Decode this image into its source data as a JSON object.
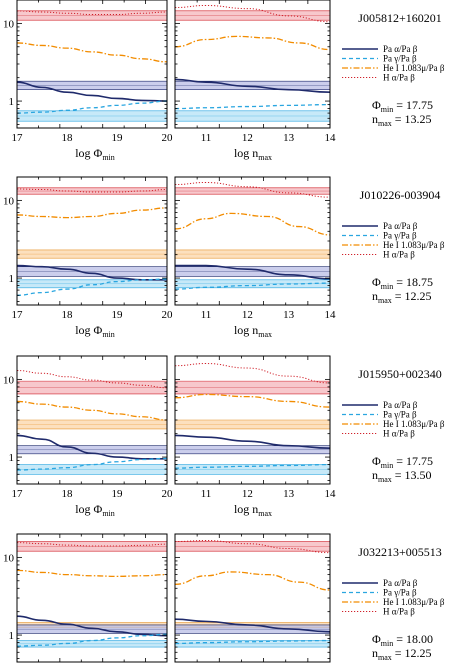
{
  "legend_labels": [
    "Pa α/Pa β",
    "Pa γ/Pa β",
    "He I 1.083μ/Pa β",
    "H α/Pa β"
  ],
  "axis_labels": {
    "left_x": "log Φ",
    "left_x_sub": "min",
    "right_x": "log n",
    "right_x_sub": "max"
  },
  "colors": {
    "paa": "#1f2a6b",
    "pag": "#2aa6e0",
    "hei": "#f28c00",
    "ha": "#d0202a"
  },
  "chart_data": [
    {
      "type": "line",
      "object": "J005812+160201",
      "phi_min": "Φ",
      "phi_min_sub": "min",
      "phi_min_value": "= 17.75",
      "n_max": "n",
      "n_max_sub": "max",
      "n_max_value": "= 13.25",
      "axes_visible_bottom": true,
      "left": {
        "xlim": [
          17,
          20
        ],
        "xticks": [
          "17",
          "18",
          "19",
          "20"
        ],
        "ylog": true,
        "yticks": [
          "1",
          "10"
        ],
        "series": [
          {
            "key": "paa",
            "x": [
              17,
              17.5,
              18,
              18.5,
              19,
              19.5,
              20
            ],
            "y": [
              1.75,
              1.5,
              1.3,
              1.18,
              1.08,
              1.02,
              1.0
            ]
          },
          {
            "key": "pag",
            "x": [
              17,
              17.5,
              18,
              18.5,
              19,
              19.5,
              20
            ],
            "y": [
              0.7,
              0.72,
              0.76,
              0.82,
              0.88,
              0.94,
              1.0
            ]
          },
          {
            "key": "hei",
            "x": [
              17,
              17.5,
              18,
              18.5,
              19,
              19.5,
              20
            ],
            "y": [
              5.6,
              5.2,
              4.8,
              4.3,
              3.9,
              3.5,
              3.2
            ]
          },
          {
            "key": "ha",
            "x": [
              17,
              17.5,
              18,
              18.5,
              19,
              19.5,
              20
            ],
            "y": [
              14.5,
              14.0,
              13.5,
              13.0,
              13.0,
              13.5,
              14.0
            ]
          }
        ]
      },
      "right": {
        "xlim": [
          10.25,
          14
        ],
        "xticks": [
          "11",
          "12",
          "13",
          "14"
        ],
        "ylog": true,
        "yticks": [
          "1",
          "10"
        ],
        "series": [
          {
            "key": "paa",
            "x": [
              10.25,
              11,
              12,
              13,
              14
            ],
            "y": [
              1.9,
              1.75,
              1.55,
              1.4,
              1.3
            ]
          },
          {
            "key": "pag",
            "x": [
              10.25,
              11,
              12,
              13,
              14
            ],
            "y": [
              0.8,
              0.82,
              0.85,
              0.88,
              0.9
            ]
          },
          {
            "key": "hei",
            "x": [
              10.25,
              11,
              11.75,
              12.5,
              13.25,
              14
            ],
            "y": [
              5.0,
              6.2,
              6.8,
              6.5,
              5.6,
              4.6
            ]
          },
          {
            "key": "ha",
            "x": [
              10.25,
              11,
              12,
              13,
              14
            ],
            "y": [
              16,
              17,
              15.5,
              12.5,
              10.5
            ]
          }
        ]
      },
      "bands": {
        "ha": [
          11,
          14.5
        ],
        "paa": [
          1.4,
          1.8
        ],
        "pag": [
          0.55,
          0.75
        ]
      }
    },
    {
      "type": "line",
      "object": "J010226-003904",
      "phi_min": "Φ",
      "phi_min_sub": "min",
      "phi_min_value": "= 18.75",
      "n_max": "n",
      "n_max_sub": "max",
      "n_max_value": "= 12.25",
      "axes_visible_bottom": true,
      "left": {
        "xlim": [
          17,
          20
        ],
        "xticks": [
          "17",
          "18",
          "19",
          "20"
        ],
        "ylog": true,
        "yticks": [
          "1",
          "10"
        ],
        "series": [
          {
            "key": "paa",
            "x": [
              17,
              17.5,
              18,
              18.5,
              19,
              19.5,
              20
            ],
            "y": [
              1.45,
              1.4,
              1.3,
              1.15,
              1.0,
              0.95,
              0.95
            ]
          },
          {
            "key": "pag",
            "x": [
              17,
              17.5,
              18,
              18.5,
              19,
              19.5,
              20
            ],
            "y": [
              0.6,
              0.65,
              0.72,
              0.82,
              0.9,
              0.95,
              0.97
            ]
          },
          {
            "key": "hei",
            "x": [
              17,
              17.5,
              18,
              18.5,
              19,
              19.5,
              20
            ],
            "y": [
              6.5,
              6.2,
              6.0,
              6.2,
              6.8,
              7.5,
              8.0
            ]
          },
          {
            "key": "ha",
            "x": [
              17,
              17.5,
              18,
              18.5,
              19,
              19.5,
              20
            ],
            "y": [
              14.0,
              13.8,
              13.2,
              12.8,
              12.8,
              13.2,
              13.8
            ]
          }
        ]
      },
      "right": {
        "xlim": [
          10.25,
          14
        ],
        "xticks": [
          "11",
          "12",
          "13",
          "14"
        ],
        "ylog": true,
        "yticks": [
          "1",
          "10"
        ],
        "series": [
          {
            "key": "paa",
            "x": [
              10.25,
              11,
              12,
              13,
              14
            ],
            "y": [
              1.45,
              1.45,
              1.3,
              1.1,
              0.98
            ]
          },
          {
            "key": "pag",
            "x": [
              10.25,
              11,
              12,
              13,
              14
            ],
            "y": [
              0.72,
              0.76,
              0.8,
              0.84,
              0.86
            ]
          },
          {
            "key": "hei",
            "x": [
              10.25,
              11,
              11.6,
              12.5,
              13.25,
              14
            ],
            "y": [
              4.3,
              5.8,
              6.8,
              6.2,
              4.6,
              3.6
            ]
          },
          {
            "key": "ha",
            "x": [
              10.25,
              11,
              12,
              13,
              14
            ],
            "y": [
              16,
              17,
              15,
              12.5,
              11
            ]
          }
        ]
      },
      "bands": {
        "ha": [
          12,
          14.5
        ],
        "hei": [
          1.8,
          2.3
        ],
        "paa": [
          1.05,
          1.4
        ],
        "pag": [
          0.75,
          0.95
        ]
      }
    },
    {
      "type": "line",
      "object": "J015950+002340",
      "phi_min": "Φ",
      "phi_min_sub": "min",
      "phi_min_value": "= 17.75",
      "n_max": "n",
      "n_max_sub": "max",
      "n_max_value": "= 13.50",
      "axes_visible_bottom": true,
      "left": {
        "xlim": [
          17,
          20
        ],
        "xticks": [
          "17",
          "18",
          "19",
          "20"
        ],
        "ylog": true,
        "yticks": [
          "1",
          "10"
        ],
        "series": [
          {
            "key": "paa",
            "x": [
              17,
              17.5,
              18,
              18.5,
              19,
              19.5,
              20
            ],
            "y": [
              1.9,
              1.7,
              1.35,
              1.12,
              1.0,
              0.95,
              0.95
            ]
          },
          {
            "key": "pag",
            "x": [
              17,
              17.5,
              18,
              18.5,
              19,
              19.5,
              20
            ],
            "y": [
              0.68,
              0.7,
              0.73,
              0.8,
              0.87,
              0.93,
              0.96
            ]
          },
          {
            "key": "hei",
            "x": [
              17,
              17.5,
              18,
              18.5,
              19,
              19.5,
              20
            ],
            "y": [
              5.2,
              4.8,
              4.4,
              4.0,
              3.6,
              3.3,
              3.0
            ]
          },
          {
            "key": "ha",
            "x": [
              17,
              17.5,
              18,
              18.5,
              19,
              19.5,
              20
            ],
            "y": [
              13,
              12,
              10.8,
              9.8,
              9.0,
              8.4,
              7.8
            ]
          }
        ]
      },
      "right": {
        "xlim": [
          10.25,
          14
        ],
        "xticks": [
          "11",
          "12",
          "13",
          "14"
        ],
        "ylog": true,
        "yticks": [
          "1",
          "10"
        ],
        "series": [
          {
            "key": "paa",
            "x": [
              10.25,
              11,
              12,
              13,
              14
            ],
            "y": [
              1.9,
              1.8,
              1.6,
              1.4,
              1.3
            ]
          },
          {
            "key": "pag",
            "x": [
              10.25,
              11,
              12,
              13,
              14
            ],
            "y": [
              0.72,
              0.74,
              0.76,
              0.78,
              0.8
            ]
          },
          {
            "key": "hei",
            "x": [
              10.25,
              11,
              12,
              13,
              14
            ],
            "y": [
              5.8,
              6.4,
              6.0,
              5.2,
              4.4
            ]
          },
          {
            "key": "ha",
            "x": [
              10.25,
              11,
              12,
              13,
              14
            ],
            "y": [
              15,
              16,
              14,
              11,
              9
            ]
          }
        ]
      },
      "bands": {
        "ha": [
          6.5,
          9.5
        ],
        "hei": [
          2.3,
          3.0
        ],
        "paa": [
          1.1,
          1.4
        ],
        "pag": [
          0.6,
          0.8
        ]
      }
    },
    {
      "type": "line",
      "object": "J032213+005513",
      "phi_min": "Φ",
      "phi_min_sub": "min",
      "phi_min_value": "= 18.00",
      "n_max": "n",
      "n_max_sub": "max",
      "n_max_value": "= 12.25",
      "axes_visible_bottom": false,
      "left": {
        "xlim": [
          17,
          20
        ],
        "xticks": [],
        "ylog": true,
        "yticks": [
          "1",
          "10"
        ],
        "series": [
          {
            "key": "paa",
            "x": [
              17,
              17.5,
              18,
              18.5,
              19,
              19.5,
              20
            ],
            "y": [
              1.75,
              1.55,
              1.38,
              1.22,
              1.1,
              1.02,
              0.98
            ]
          },
          {
            "key": "pag",
            "x": [
              17,
              17.5,
              18,
              18.5,
              19,
              19.5,
              20
            ],
            "y": [
              0.72,
              0.74,
              0.78,
              0.85,
              0.92,
              0.98,
              1.02
            ]
          },
          {
            "key": "hei",
            "x": [
              17,
              17.5,
              18,
              18.5,
              19,
              19.5,
              20
            ],
            "y": [
              6.8,
              6.4,
              6.0,
              5.8,
              5.7,
              5.8,
              6.0
            ]
          },
          {
            "key": "ha",
            "x": [
              17,
              17.5,
              18,
              18.5,
              19,
              19.5,
              20
            ],
            "y": [
              15.5,
              15.0,
              14.4,
              14.0,
              14.0,
              14.3,
              14.8
            ]
          }
        ]
      },
      "right": {
        "xlim": [
          10.25,
          14
        ],
        "xticks": [],
        "ylog": true,
        "yticks": [
          "1",
          "10"
        ],
        "series": [
          {
            "key": "paa",
            "x": [
              10.25,
              11,
              12,
              13,
              14
            ],
            "y": [
              1.6,
              1.5,
              1.35,
              1.2,
              1.1
            ]
          },
          {
            "key": "pag",
            "x": [
              10.25,
              11,
              12,
              13,
              14
            ],
            "y": [
              0.78,
              0.8,
              0.82,
              0.84,
              0.85
            ]
          },
          {
            "key": "hei",
            "x": [
              10.25,
              11,
              11.6,
              12.5,
              13.25,
              14
            ],
            "y": [
              4.5,
              5.8,
              6.5,
              6.0,
              4.8,
              3.8
            ]
          },
          {
            "key": "ha",
            "x": [
              10.25,
              11,
              12,
              13,
              14
            ],
            "y": [
              16,
              16.5,
              15,
              13,
              11.5
            ]
          }
        ]
      },
      "bands": {
        "ha": [
          12,
          16
        ],
        "hei": [
          1.25,
          1.45
        ],
        "paa": [
          1.05,
          1.35
        ],
        "pag": [
          0.7,
          0.85
        ]
      }
    }
  ]
}
